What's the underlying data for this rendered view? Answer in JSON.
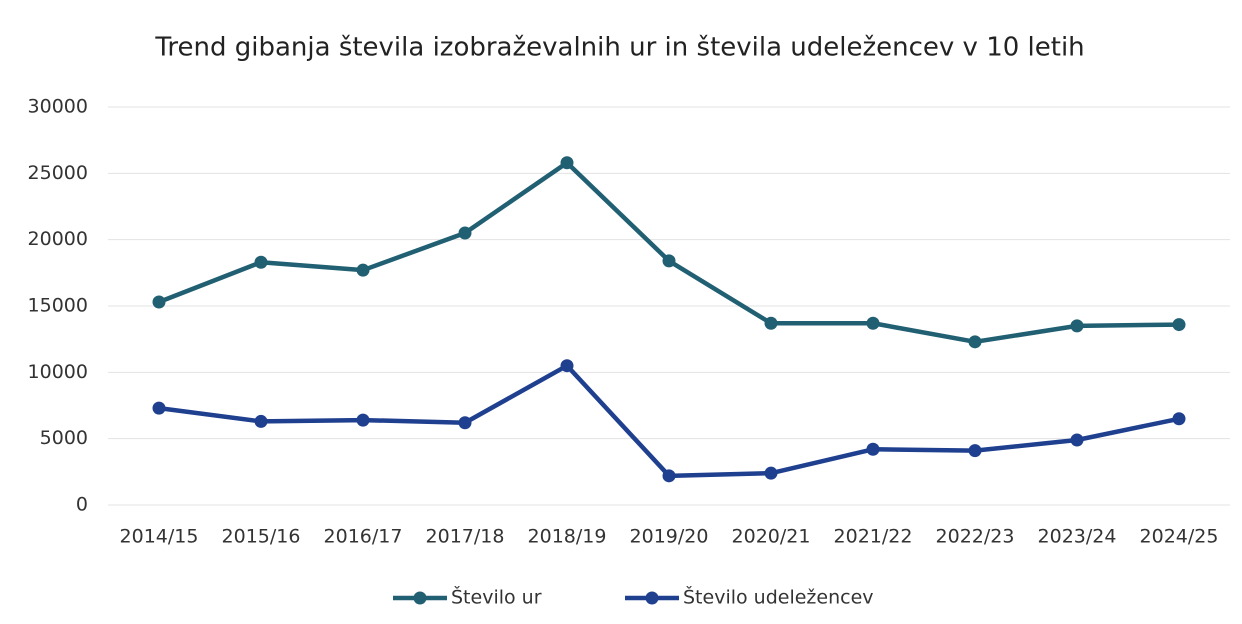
{
  "chart_data": {
    "type": "line",
    "title": "Trend gibanja števila izobraževalnih ur in števila udeležencev v 10 letih",
    "categories": [
      "2014/15",
      "2015/16",
      "2016/17",
      "2017/18",
      "2018/19",
      "2019/20",
      "2020/21",
      "2021/22",
      "2022/23",
      "2023/24",
      "2024/25"
    ],
    "series": [
      {
        "name": "Število ur",
        "color": "#215f73",
        "values": [
          15300,
          18300,
          17700,
          20500,
          25800,
          18400,
          13700,
          13700,
          12300,
          13500,
          13600
        ]
      },
      {
        "name": "Število udeležencev",
        "color": "#1f3f8f",
        "values": [
          7300,
          6300,
          6400,
          6200,
          10500,
          2200,
          2400,
          4200,
          4100,
          4900,
          6500
        ]
      }
    ],
    "ylim": [
      0,
      30000
    ],
    "yticks": [
      0,
      5000,
      10000,
      15000,
      20000,
      25000,
      30000
    ],
    "grid": true,
    "legend": "bottom"
  }
}
